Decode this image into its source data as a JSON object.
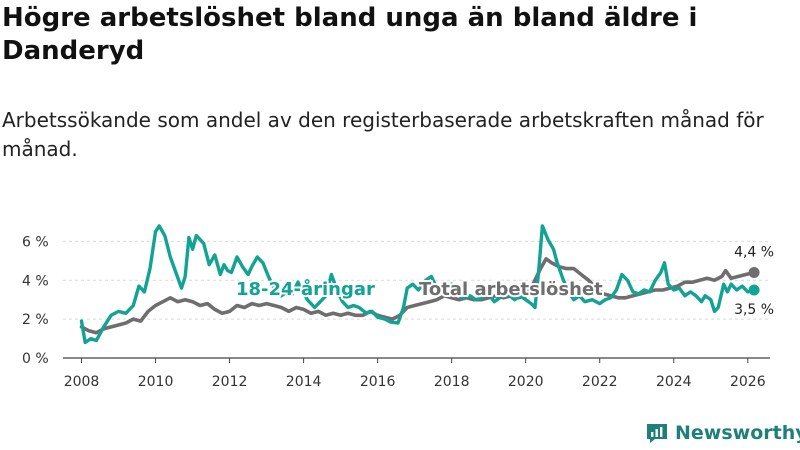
{
  "header": {
    "title": "Högre arbetslöshet bland unga än bland äldre i Danderyd",
    "subtitle": "Arbetssökande som andel av den registerbaserade arbetskraften månad för månad."
  },
  "brand": {
    "name": "Newsworthy"
  },
  "colors": {
    "youth": "#12a394",
    "total": "#6e6e6e",
    "brand": "#1f7f7a"
  },
  "chart_data": {
    "type": "line",
    "title": "Högre arbetslöshet bland unga än bland äldre i Danderyd",
    "subtitle": "Arbetssökande som andel av den registerbaserade arbetskraften månad för månad.",
    "xlabel": "",
    "ylabel": "",
    "xlim": [
      2007.5,
      2026.6
    ],
    "ylim": [
      0,
      7
    ],
    "x_ticks": [
      2008,
      2010,
      2012,
      2014,
      2016,
      2018,
      2020,
      2022,
      2024,
      2026
    ],
    "x_tick_labels": [
      "2008",
      "2010",
      "2012",
      "2014",
      "2016",
      "2018",
      "2020",
      "2022",
      "2024",
      "2026"
    ],
    "y_ticks": [
      0,
      2,
      4,
      6
    ],
    "y_tick_labels": [
      "0 %",
      "2 %",
      "4 %",
      "6 %"
    ],
    "grid": "horizontal",
    "series": [
      {
        "name": "18-24-åringar",
        "label": "18-24-åringar",
        "end_label": "3,5 %",
        "points": [
          [
            2008.0,
            1.9
          ],
          [
            2008.1,
            0.8
          ],
          [
            2008.25,
            1.0
          ],
          [
            2008.4,
            0.9
          ],
          [
            2008.6,
            1.6
          ],
          [
            2008.8,
            2.2
          ],
          [
            2009.0,
            2.4
          ],
          [
            2009.2,
            2.3
          ],
          [
            2009.4,
            2.7
          ],
          [
            2009.55,
            3.7
          ],
          [
            2009.7,
            3.4
          ],
          [
            2009.85,
            4.6
          ],
          [
            2010.0,
            6.5
          ],
          [
            2010.1,
            6.8
          ],
          [
            2010.25,
            6.3
          ],
          [
            2010.4,
            5.2
          ],
          [
            2010.55,
            4.4
          ],
          [
            2010.7,
            3.6
          ],
          [
            2010.8,
            4.2
          ],
          [
            2010.9,
            6.2
          ],
          [
            2011.0,
            5.6
          ],
          [
            2011.1,
            6.3
          ],
          [
            2011.3,
            5.9
          ],
          [
            2011.45,
            4.8
          ],
          [
            2011.6,
            5.3
          ],
          [
            2011.75,
            4.3
          ],
          [
            2011.85,
            4.8
          ],
          [
            2011.95,
            4.5
          ],
          [
            2012.05,
            4.4
          ],
          [
            2012.2,
            5.2
          ],
          [
            2012.35,
            4.7
          ],
          [
            2012.5,
            4.3
          ],
          [
            2012.6,
            4.7
          ],
          [
            2012.75,
            5.2
          ],
          [
            2012.9,
            4.9
          ],
          [
            2013.05,
            4.2
          ],
          [
            2013.2,
            3.6
          ],
          [
            2013.4,
            3.2
          ],
          [
            2013.55,
            3.4
          ],
          [
            2013.7,
            3.3
          ],
          [
            2013.85,
            3.9
          ],
          [
            2013.95,
            3.5
          ],
          [
            2014.1,
            3.0
          ],
          [
            2014.3,
            2.6
          ],
          [
            2014.45,
            2.9
          ],
          [
            2014.6,
            3.2
          ],
          [
            2014.75,
            4.3
          ],
          [
            2014.9,
            3.5
          ],
          [
            2015.05,
            2.9
          ],
          [
            2015.2,
            2.6
          ],
          [
            2015.35,
            2.7
          ],
          [
            2015.5,
            2.6
          ],
          [
            2015.7,
            2.3
          ],
          [
            2015.85,
            2.4
          ],
          [
            2016.0,
            2.1
          ],
          [
            2016.2,
            2.0
          ],
          [
            2016.35,
            1.85
          ],
          [
            2016.55,
            1.8
          ],
          [
            2016.7,
            2.6
          ],
          [
            2016.8,
            3.6
          ],
          [
            2016.95,
            3.8
          ],
          [
            2017.1,
            3.5
          ],
          [
            2017.3,
            4.0
          ],
          [
            2017.45,
            4.2
          ],
          [
            2017.6,
            3.6
          ],
          [
            2017.75,
            3.4
          ],
          [
            2017.9,
            3.7
          ],
          [
            2018.0,
            3.8
          ],
          [
            2018.15,
            3.3
          ],
          [
            2018.3,
            3.1
          ],
          [
            2018.5,
            3.2
          ],
          [
            2018.65,
            3.0
          ],
          [
            2018.8,
            3.1
          ],
          [
            2019.0,
            3.3
          ],
          [
            2019.15,
            2.9
          ],
          [
            2019.3,
            3.1
          ],
          [
            2019.5,
            3.3
          ],
          [
            2019.7,
            3.0
          ],
          [
            2019.85,
            3.2
          ],
          [
            2020.0,
            3.0
          ],
          [
            2020.15,
            2.8
          ],
          [
            2020.25,
            2.6
          ],
          [
            2020.35,
            4.5
          ],
          [
            2020.45,
            6.8
          ],
          [
            2020.6,
            6.1
          ],
          [
            2020.75,
            5.6
          ],
          [
            2020.85,
            4.9
          ],
          [
            2021.0,
            4.1
          ],
          [
            2021.15,
            3.4
          ],
          [
            2021.3,
            3.0
          ],
          [
            2021.45,
            3.2
          ],
          [
            2021.6,
            2.9
          ],
          [
            2021.8,
            3.0
          ],
          [
            2022.0,
            2.8
          ],
          [
            2022.15,
            3.0
          ],
          [
            2022.3,
            3.1
          ],
          [
            2022.45,
            3.5
          ],
          [
            2022.6,
            4.3
          ],
          [
            2022.75,
            4.0
          ],
          [
            2022.9,
            3.4
          ],
          [
            2023.05,
            3.3
          ],
          [
            2023.2,
            3.5
          ],
          [
            2023.35,
            3.4
          ],
          [
            2023.5,
            4.0
          ],
          [
            2023.65,
            4.4
          ],
          [
            2023.75,
            4.9
          ],
          [
            2023.85,
            3.8
          ],
          [
            2024.0,
            3.5
          ],
          [
            2024.15,
            3.6
          ],
          [
            2024.3,
            3.2
          ],
          [
            2024.45,
            3.4
          ],
          [
            2024.6,
            3.2
          ],
          [
            2024.75,
            2.9
          ],
          [
            2024.85,
            3.2
          ],
          [
            2025.0,
            3.0
          ],
          [
            2025.1,
            2.4
          ],
          [
            2025.2,
            2.6
          ],
          [
            2025.35,
            3.8
          ],
          [
            2025.45,
            3.4
          ],
          [
            2025.55,
            3.8
          ],
          [
            2025.7,
            3.5
          ],
          [
            2025.85,
            3.7
          ],
          [
            2026.0,
            3.4
          ],
          [
            2026.17,
            3.5
          ]
        ]
      },
      {
        "name": "Total arbetslöshet",
        "label": "Total arbetslöshet",
        "end_label": "4,4 %",
        "points": [
          [
            2008.0,
            1.6
          ],
          [
            2008.2,
            1.4
          ],
          [
            2008.4,
            1.3
          ],
          [
            2008.6,
            1.5
          ],
          [
            2008.8,
            1.6
          ],
          [
            2009.0,
            1.7
          ],
          [
            2009.2,
            1.8
          ],
          [
            2009.4,
            2.0
          ],
          [
            2009.6,
            1.9
          ],
          [
            2009.8,
            2.4
          ],
          [
            2010.0,
            2.7
          ],
          [
            2010.2,
            2.9
          ],
          [
            2010.4,
            3.1
          ],
          [
            2010.6,
            2.9
          ],
          [
            2010.8,
            3.0
          ],
          [
            2011.0,
            2.9
          ],
          [
            2011.2,
            2.7
          ],
          [
            2011.4,
            2.8
          ],
          [
            2011.6,
            2.5
          ],
          [
            2011.8,
            2.3
          ],
          [
            2012.0,
            2.4
          ],
          [
            2012.2,
            2.7
          ],
          [
            2012.4,
            2.6
          ],
          [
            2012.6,
            2.8
          ],
          [
            2012.8,
            2.7
          ],
          [
            2013.0,
            2.8
          ],
          [
            2013.2,
            2.7
          ],
          [
            2013.4,
            2.6
          ],
          [
            2013.6,
            2.4
          ],
          [
            2013.8,
            2.6
          ],
          [
            2014.0,
            2.5
          ],
          [
            2014.2,
            2.3
          ],
          [
            2014.4,
            2.4
          ],
          [
            2014.6,
            2.2
          ],
          [
            2014.8,
            2.3
          ],
          [
            2015.0,
            2.2
          ],
          [
            2015.2,
            2.3
          ],
          [
            2015.4,
            2.2
          ],
          [
            2015.6,
            2.2
          ],
          [
            2015.8,
            2.4
          ],
          [
            2016.0,
            2.2
          ],
          [
            2016.2,
            2.1
          ],
          [
            2016.4,
            2.0
          ],
          [
            2016.6,
            2.2
          ],
          [
            2016.8,
            2.6
          ],
          [
            2017.0,
            2.7
          ],
          [
            2017.2,
            2.8
          ],
          [
            2017.4,
            2.9
          ],
          [
            2017.6,
            3.0
          ],
          [
            2017.8,
            3.2
          ],
          [
            2018.0,
            3.1
          ],
          [
            2018.2,
            3.0
          ],
          [
            2018.4,
            3.1
          ],
          [
            2018.6,
            3.0
          ],
          [
            2018.8,
            3.0
          ],
          [
            2019.0,
            3.1
          ],
          [
            2019.2,
            3.2
          ],
          [
            2019.4,
            3.1
          ],
          [
            2019.6,
            3.2
          ],
          [
            2019.8,
            3.1
          ],
          [
            2020.0,
            3.2
          ],
          [
            2020.2,
            3.8
          ],
          [
            2020.4,
            4.6
          ],
          [
            2020.55,
            5.1
          ],
          [
            2020.7,
            4.9
          ],
          [
            2020.9,
            4.7
          ],
          [
            2021.1,
            4.6
          ],
          [
            2021.3,
            4.6
          ],
          [
            2021.5,
            4.3
          ],
          [
            2021.7,
            4.0
          ],
          [
            2021.9,
            3.6
          ],
          [
            2022.1,
            3.3
          ],
          [
            2022.3,
            3.2
          ],
          [
            2022.5,
            3.1
          ],
          [
            2022.7,
            3.1
          ],
          [
            2022.9,
            3.2
          ],
          [
            2023.1,
            3.3
          ],
          [
            2023.3,
            3.4
          ],
          [
            2023.5,
            3.5
          ],
          [
            2023.7,
            3.5
          ],
          [
            2023.9,
            3.6
          ],
          [
            2024.1,
            3.7
          ],
          [
            2024.3,
            3.9
          ],
          [
            2024.5,
            3.9
          ],
          [
            2024.7,
            4.0
          ],
          [
            2024.9,
            4.1
          ],
          [
            2025.1,
            4.0
          ],
          [
            2025.3,
            4.2
          ],
          [
            2025.4,
            4.5
          ],
          [
            2025.55,
            4.1
          ],
          [
            2025.75,
            4.2
          ],
          [
            2025.95,
            4.3
          ],
          [
            2026.17,
            4.4
          ]
        ]
      }
    ]
  }
}
